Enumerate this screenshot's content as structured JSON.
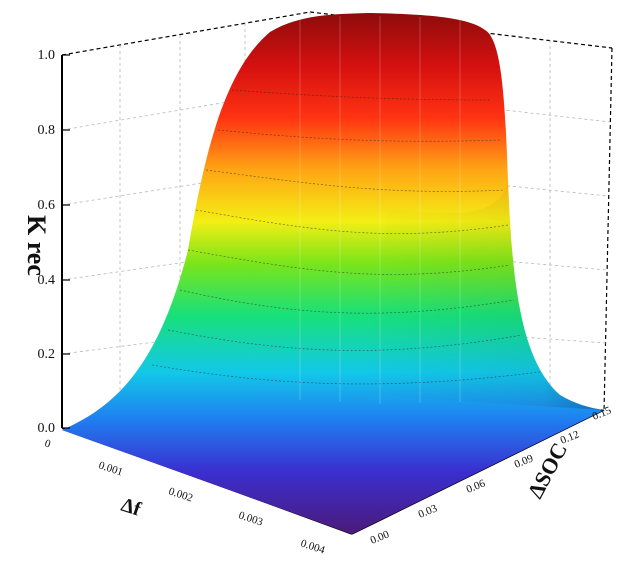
{
  "chart_data": {
    "type": "surface3d",
    "zlabel": "K rec",
    "xlabel": "Δf",
    "ylabel": "ΔSOC",
    "zlim": [
      0,
      1.0
    ],
    "z_ticks": [
      "0.0",
      "0.2",
      "0.4",
      "0.6",
      "0.8",
      "1.0"
    ],
    "x_ticks": [
      "0",
      "0.001",
      "0.002",
      "0.003",
      "0.004"
    ],
    "y_ticks": [
      "0.00",
      "0.03",
      "0.06",
      "0.09",
      "0.12",
      "0.15"
    ],
    "grid": true,
    "colormap": [
      "#4b1a7a",
      "#3a2fd0",
      "#1f7ff0",
      "#12c8e8",
      "#18e07a",
      "#7be51a",
      "#f3ee14",
      "#ffa414",
      "#ff3212",
      "#d41010",
      "#8e0b0b"
    ]
  }
}
